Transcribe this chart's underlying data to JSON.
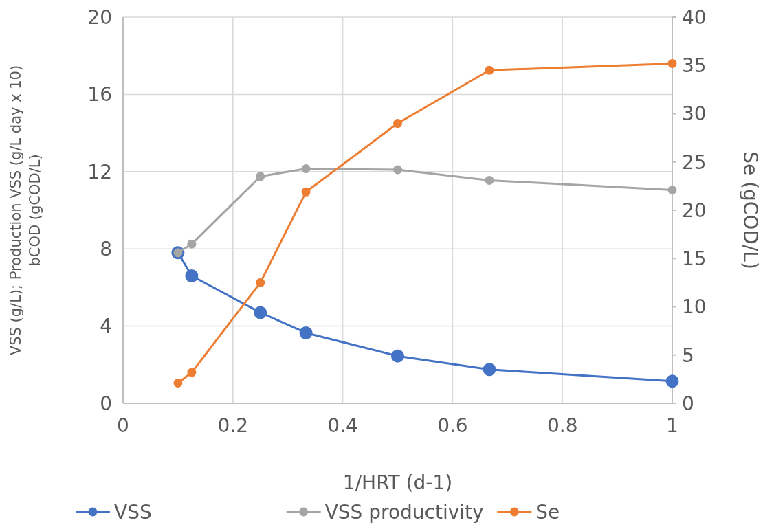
{
  "chart_data": {
    "type": "line",
    "xlabel": "1/HRT (d-1)",
    "ylabel": "VSS (g/L); Production VSS (g/L day x 10)\nbCOD (gCOD/L)",
    "y2label": "Se (gCOD/L)",
    "x": [
      0.1,
      0.125,
      0.25,
      0.333,
      0.5,
      0.667,
      1
    ],
    "series": [
      {
        "name": "VSS",
        "color": "#4472c4",
        "values": [
          7.8,
          6.6,
          4.7,
          3.65,
          2.45,
          1.75,
          1.15
        ]
      },
      {
        "name": "VSS productivity",
        "color": "#a5a5a5",
        "values": [
          7.8,
          8.25,
          11.75,
          12.15,
          12.1,
          11.55,
          11.05
        ]
      },
      {
        "name": "Se",
        "color": "#ed7d31",
        "axis": "y2",
        "values": [
          2.1,
          3.2,
          12.5,
          21.9,
          29,
          34.5,
          35.2
        ]
      }
    ],
    "xlim": [
      0,
      1
    ],
    "xticks": [
      0,
      0.2,
      0.4,
      0.6,
      0.8,
      1
    ],
    "ylim": [
      0,
      20
    ],
    "yticks": [
      0,
      4,
      8,
      12,
      16,
      20
    ],
    "y2lim": [
      0,
      40
    ],
    "y2ticks": [
      0,
      5,
      10,
      15,
      20,
      25,
      30,
      35,
      40
    ],
    "grid": true,
    "legend": "bottom",
    "marker": "circle",
    "line_style": "solid"
  }
}
